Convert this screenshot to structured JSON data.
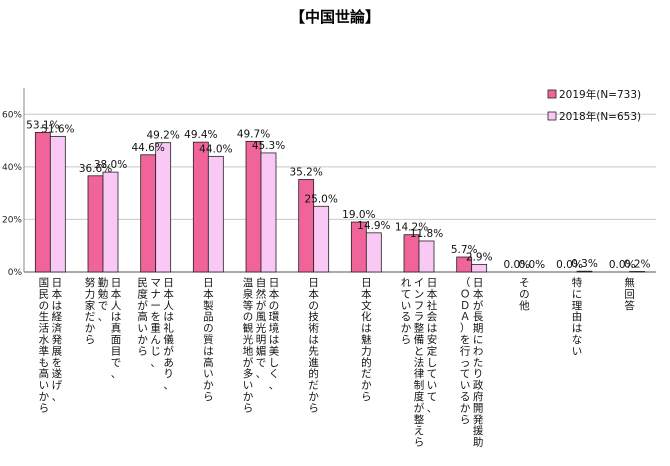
{
  "chart_data": {
    "type": "bar",
    "title": "【中国世論】",
    "xlabel": "",
    "ylabel": "",
    "ylim": [
      0,
      70
    ],
    "yticks": [
      "0%",
      "20%",
      "40%",
      "60%"
    ],
    "legend_position": "right",
    "grid": true,
    "categories": [
      "日本は経済発展を遂げ、国民の生活水準も高いから",
      "日本人は真面目で、勤勉で、努力家だから",
      "日本人は礼儀があり、マナーを重んじ、民度が高いから",
      "日本製品の質は高いから",
      "日本の環境は美しく、自然が風光明媚で、温泉等の観光地が多いから",
      "日本の技術は先進的だから",
      "日本文化は魅力的だから",
      "日本社会は安定していて、インフラ整備と法律制度が整えられているから",
      "日本が長期にわたり政府開発援助（ＯＤＡ）を行っているから",
      "その他",
      "特に理由はない",
      "無回答"
    ],
    "series": [
      {
        "name": "2019年(N=733)",
        "color": "#f0649a",
        "values": [
          53.1,
          36.6,
          44.6,
          49.4,
          49.7,
          35.2,
          19.0,
          14.2,
          5.7,
          0.0,
          0.0,
          0.0
        ],
        "labels": [
          "53.1%",
          "36.6%",
          "44.6%",
          "49.4%",
          "49.7%",
          "35.2%",
          "19.0%",
          "14.2%",
          "5.7%",
          "0.0%",
          "0.0%",
          "0.0%"
        ]
      },
      {
        "name": "2018年(N=653)",
        "color": "#f9c8f4",
        "values": [
          51.6,
          38.0,
          49.2,
          44.0,
          45.3,
          25.0,
          14.9,
          11.8,
          2.9,
          0.0,
          0.3,
          0.2
        ],
        "labels": [
          "51.6%",
          "38.0%",
          "49.2%",
          "44.0%",
          "45.3%",
          "25.0%",
          "14.9%",
          "11.8%",
          "2.9%",
          "0.0%",
          "0.3%",
          "0.2%"
        ]
      }
    ]
  }
}
